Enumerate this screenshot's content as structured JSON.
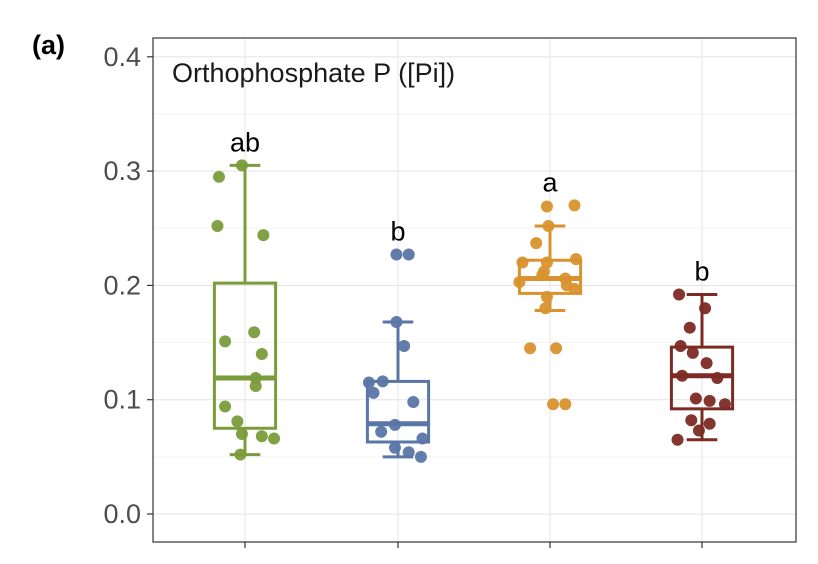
{
  "panel_label": "(a)",
  "chart_data": {
    "type": "boxplot",
    "title": "Orthophosphate P ([Pi])",
    "xlabel": "",
    "ylabel": "",
    "ylim": [
      0,
      0.42
    ],
    "yticks": [
      0.0,
      0.1,
      0.2,
      0.3,
      0.4
    ],
    "ytick_labels": [
      "0.0",
      "0.1",
      "0.2",
      "0.3",
      "0.4"
    ],
    "grid": true,
    "legend": "none",
    "groups": [
      {
        "color": "#7a9c3a",
        "letter": "ab",
        "box": {
          "min": 0.052,
          "q1": 0.075,
          "median": 0.119,
          "q3": 0.202,
          "max": 0.305
        },
        "points": [
          {
            "y": 0.305,
            "dx": -0.02
          },
          {
            "y": 0.295,
            "dx": -0.17
          },
          {
            "y": 0.252,
            "dx": -0.18
          },
          {
            "y": 0.244,
            "dx": 0.12
          },
          {
            "y": 0.159,
            "dx": 0.06
          },
          {
            "y": 0.151,
            "dx": -0.13
          },
          {
            "y": 0.14,
            "dx": 0.11
          },
          {
            "y": 0.119,
            "dx": 0.07
          },
          {
            "y": 0.112,
            "dx": 0.07
          },
          {
            "y": 0.094,
            "dx": -0.13
          },
          {
            "y": 0.081,
            "dx": -0.05
          },
          {
            "y": 0.07,
            "dx": -0.02
          },
          {
            "y": 0.068,
            "dx": 0.11
          },
          {
            "y": 0.066,
            "dx": 0.19
          },
          {
            "y": 0.052,
            "dx": -0.03
          }
        ]
      },
      {
        "color": "#5a76a6",
        "letter": "b",
        "box": {
          "min": 0.05,
          "q1": 0.063,
          "median": 0.079,
          "q3": 0.116,
          "max": 0.168
        },
        "points": [
          {
            "y": 0.227,
            "dx": 0.07
          },
          {
            "y": 0.227,
            "dx": -0.01
          },
          {
            "y": 0.168,
            "dx": -0.01
          },
          {
            "y": 0.147,
            "dx": 0.04
          },
          {
            "y": 0.116,
            "dx": -0.1
          },
          {
            "y": 0.115,
            "dx": -0.19
          },
          {
            "y": 0.106,
            "dx": -0.16
          },
          {
            "y": 0.098,
            "dx": 0.1
          },
          {
            "y": 0.078,
            "dx": -0.02
          },
          {
            "y": 0.072,
            "dx": -0.11
          },
          {
            "y": 0.066,
            "dx": 0.16
          },
          {
            "y": 0.058,
            "dx": -0.02
          },
          {
            "y": 0.054,
            "dx": 0.07
          },
          {
            "y": 0.05,
            "dx": 0.15
          }
        ]
      },
      {
        "color": "#d9922e",
        "letter": "a",
        "box": {
          "min": 0.178,
          "q1": 0.193,
          "median": 0.206,
          "q3": 0.222,
          "max": 0.252
        },
        "points": [
          {
            "y": 0.27,
            "dx": 0.16
          },
          {
            "y": 0.269,
            "dx": -0.02
          },
          {
            "y": 0.252,
            "dx": -0.01
          },
          {
            "y": 0.237,
            "dx": -0.09
          },
          {
            "y": 0.223,
            "dx": 0.17
          },
          {
            "y": 0.22,
            "dx": -0.02
          },
          {
            "y": 0.22,
            "dx": -0.18
          },
          {
            "y": 0.212,
            "dx": -0.04
          },
          {
            "y": 0.209,
            "dx": -0.05
          },
          {
            "y": 0.206,
            "dx": 0.1
          },
          {
            "y": 0.203,
            "dx": -0.2
          },
          {
            "y": 0.2,
            "dx": 0.11
          },
          {
            "y": 0.197,
            "dx": 0.16
          },
          {
            "y": 0.19,
            "dx": -0.02
          },
          {
            "y": 0.18,
            "dx": -0.03
          },
          {
            "y": 0.145,
            "dx": -0.13
          },
          {
            "y": 0.145,
            "dx": 0.04
          },
          {
            "y": 0.096,
            "dx": 0.02
          },
          {
            "y": 0.096,
            "dx": 0.1
          }
        ]
      },
      {
        "color": "#7c2a24",
        "letter": "b",
        "box": {
          "min": 0.065,
          "q1": 0.092,
          "median": 0.121,
          "q3": 0.146,
          "max": 0.192
        },
        "points": [
          {
            "y": 0.192,
            "dx": -0.15
          },
          {
            "y": 0.18,
            "dx": 0.02
          },
          {
            "y": 0.163,
            "dx": -0.08
          },
          {
            "y": 0.147,
            "dx": -0.14
          },
          {
            "y": 0.141,
            "dx": -0.06
          },
          {
            "y": 0.132,
            "dx": 0.03
          },
          {
            "y": 0.121,
            "dx": -0.13
          },
          {
            "y": 0.119,
            "dx": 0.1
          },
          {
            "y": 0.101,
            "dx": -0.04
          },
          {
            "y": 0.099,
            "dx": 0.05
          },
          {
            "y": 0.096,
            "dx": 0.15
          },
          {
            "y": 0.082,
            "dx": -0.07
          },
          {
            "y": 0.079,
            "dx": 0.05
          },
          {
            "y": 0.073,
            "dx": -0.02
          },
          {
            "y": 0.065,
            "dx": -0.16
          }
        ]
      }
    ]
  }
}
